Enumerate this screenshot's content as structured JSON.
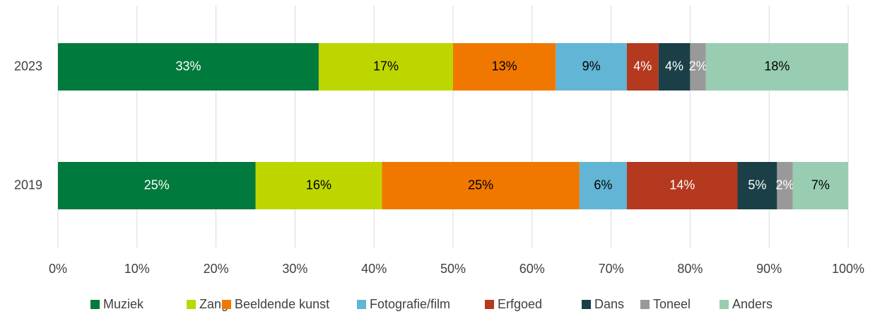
{
  "chart_data": {
    "type": "stacked_barh",
    "categories": [
      "2023",
      "2019"
    ],
    "series": [
      {
        "name": "Muziek",
        "color": "#007a3d",
        "label_color": "#ffffff",
        "values": [
          33,
          25
        ],
        "value_labels": [
          "33%",
          "25%"
        ]
      },
      {
        "name": "Zang",
        "color": "#bed600",
        "label_color": "#000000",
        "values": [
          17,
          16
        ],
        "value_labels": [
          "17%",
          "16%"
        ]
      },
      {
        "name": "Beeldende kunst",
        "color": "#f07800",
        "label_color": "#000000",
        "values": [
          13,
          25
        ],
        "value_labels": [
          "13%",
          "25%"
        ]
      },
      {
        "name": "Fotografie/film",
        "color": "#62b5d4",
        "label_color": "#000000",
        "values": [
          9,
          6
        ],
        "value_labels": [
          "9%",
          "6%"
        ]
      },
      {
        "name": "Erfgoed",
        "color": "#b5391e",
        "label_color": "#ffffff",
        "values": [
          4,
          14
        ],
        "value_labels": [
          "4%",
          "14%"
        ]
      },
      {
        "name": "Dans",
        "color": "#1b3f47",
        "label_color": "#ffffff",
        "values": [
          4,
          5
        ],
        "value_labels": [
          "4%",
          "5%"
        ]
      },
      {
        "name": "Toneel",
        "color": "#999999",
        "label_color": "#ffffff",
        "values": [
          2,
          2
        ],
        "value_labels": [
          "2%",
          "2%"
        ]
      },
      {
        "name": "Anders",
        "color": "#98cdb1",
        "label_color": "#000000",
        "values": [
          18,
          7
        ],
        "value_labels": [
          "18%",
          "7%"
        ]
      }
    ],
    "xlim": [
      0,
      100
    ],
    "xticks": [
      {
        "value": 0,
        "label": "0%"
      },
      {
        "value": 10,
        "label": "10%"
      },
      {
        "value": 20,
        "label": "20%"
      },
      {
        "value": 30,
        "label": "30%"
      },
      {
        "value": 40,
        "label": "40%"
      },
      {
        "value": 50,
        "label": "50%"
      },
      {
        "value": 60,
        "label": "60%"
      },
      {
        "value": 70,
        "label": "70%"
      },
      {
        "value": 80,
        "label": "80%"
      },
      {
        "value": 90,
        "label": "90%"
      },
      {
        "value": 100,
        "label": "100%"
      }
    ],
    "grid": true,
    "legend": "bottom"
  }
}
